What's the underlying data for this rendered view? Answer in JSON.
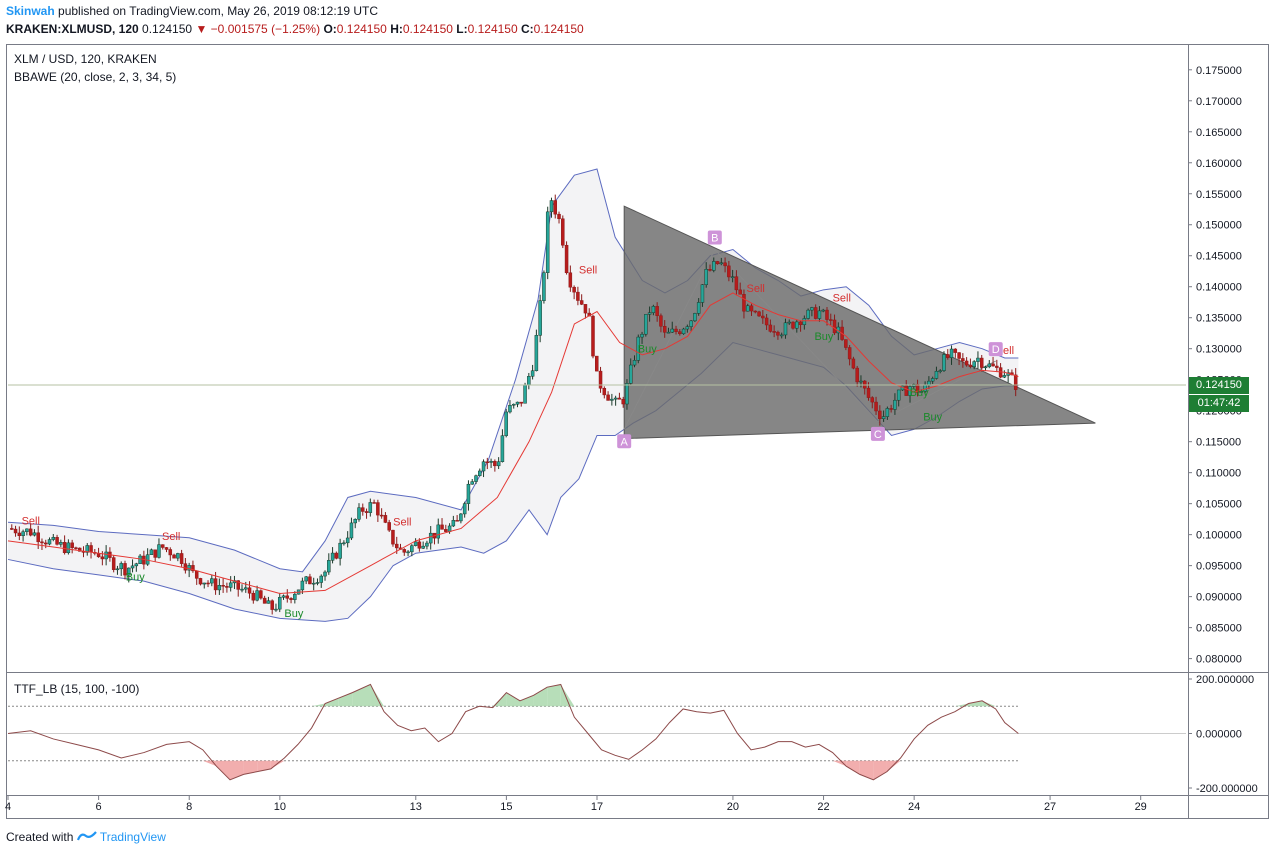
{
  "header": {
    "user": "Skinwah",
    "published_text": "published on TradingView.com, May 26, 2019 08:12:19 UTC",
    "symbol": "KRAKEN:XLMUSD, 120",
    "last": "0.124150",
    "arrow": "▼",
    "change": "−0.001575 (−1.25%)",
    "o_label": "O:",
    "o": "0.124150",
    "h_label": "H:",
    "h": "0.124150",
    "l_label": "L:",
    "l": "0.124150",
    "c_label": "C:",
    "c": "0.124150"
  },
  "legend": {
    "pair": "XLM / USD, 120, KRAKEN",
    "indicator": "BBAWE (20, close, 2, 3, 34, 5)",
    "oscillator": "TTF_LB (15, 100, -100)"
  },
  "price_tag": "0.124150",
  "time_tag": "01:47:42",
  "footer": {
    "created": "Created with",
    "brand": "TradingView"
  },
  "colors": {
    "up": "#26a69a",
    "down": "#b71c1c",
    "basis": "#e53935",
    "band": "#5c6bc0",
    "triangle": "#6b6b6b",
    "pattern_point": "#ce93d8",
    "buy": "#1b8a2a",
    "sell": "#d32f2f",
    "tag": "#1e7e34"
  },
  "chart_data": [
    {
      "type": "candlestick",
      "title": "XLM / USD, 120, KRAKEN",
      "y_ticks": [
        "0.175000",
        "0.170000",
        "0.165000",
        "0.160000",
        "0.155000",
        "0.150000",
        "0.145000",
        "0.140000",
        "0.135000",
        "0.130000",
        "0.125000",
        "0.120000",
        "0.115000",
        "0.110000",
        "0.105000",
        "0.100000",
        "0.095000",
        "0.090000",
        "0.085000",
        "0.080000"
      ],
      "ylim": [
        0.078,
        0.179
      ],
      "x_ticks": [
        {
          "label": "4",
          "day": 4
        },
        {
          "label": "6",
          "day": 6
        },
        {
          "label": "8",
          "day": 8
        },
        {
          "label": "10",
          "day": 10
        },
        {
          "label": "13",
          "day": 13
        },
        {
          "label": "15",
          "day": 15
        },
        {
          "label": "17",
          "day": 17
        },
        {
          "label": "20",
          "day": 20
        },
        {
          "label": "22",
          "day": 22
        },
        {
          "label": "24",
          "day": 24
        },
        {
          "label": "27",
          "day": 27
        },
        {
          "label": "29",
          "day": 29
        }
      ],
      "xlim": [
        4.0,
        30.0
      ],
      "price_path": [
        [
          4.0,
          0.101
        ],
        [
          4.5,
          0.1005
        ],
        [
          5.0,
          0.0985
        ],
        [
          5.5,
          0.0975
        ],
        [
          6.0,
          0.097
        ],
        [
          6.3,
          0.0955
        ],
        [
          6.6,
          0.0945
        ],
        [
          7.0,
          0.096
        ],
        [
          7.4,
          0.098
        ],
        [
          7.8,
          0.0965
        ],
        [
          8.1,
          0.0935
        ],
        [
          8.5,
          0.092
        ],
        [
          9.0,
          0.0915
        ],
        [
          9.4,
          0.0905
        ],
        [
          9.8,
          0.088
        ],
        [
          10.1,
          0.0895
        ],
        [
          10.5,
          0.092
        ],
        [
          11.0,
          0.094
        ],
        [
          11.4,
          0.099
        ],
        [
          11.8,
          0.104
        ],
        [
          12.1,
          0.105
        ],
        [
          12.4,
          0.1
        ],
        [
          12.7,
          0.097
        ],
        [
          13.1,
          0.099
        ],
        [
          13.5,
          0.1005
        ],
        [
          13.9,
          0.1015
        ],
        [
          14.2,
          0.109
        ],
        [
          14.5,
          0.112
        ],
        [
          14.8,
          0.111
        ],
        [
          15.0,
          0.12
        ],
        [
          15.3,
          0.121
        ],
        [
          15.6,
          0.128
        ],
        [
          15.8,
          0.14
        ],
        [
          15.95,
          0.155
        ],
        [
          16.2,
          0.15
        ],
        [
          16.35,
          0.142
        ],
        [
          16.6,
          0.138
        ],
        [
          16.8,
          0.136
        ],
        [
          17.0,
          0.125
        ],
        [
          17.2,
          0.123
        ],
        [
          17.4,
          0.121
        ],
        [
          17.6,
          0.122
        ],
        [
          17.9,
          0.131
        ],
        [
          18.2,
          0.137
        ],
        [
          18.5,
          0.132
        ],
        [
          18.8,
          0.133
        ],
        [
          19.1,
          0.135
        ],
        [
          19.4,
          0.142
        ],
        [
          19.7,
          0.144
        ],
        [
          20.0,
          0.141
        ],
        [
          20.3,
          0.136
        ],
        [
          20.7,
          0.134
        ],
        [
          21.1,
          0.133
        ],
        [
          21.5,
          0.135
        ],
        [
          21.9,
          0.136
        ],
        [
          22.3,
          0.133
        ],
        [
          22.7,
          0.126
        ],
        [
          23.0,
          0.122
        ],
        [
          23.3,
          0.119
        ],
        [
          23.6,
          0.122
        ],
        [
          23.9,
          0.124
        ],
        [
          24.2,
          0.123
        ],
        [
          24.5,
          0.127
        ],
        [
          24.8,
          0.129
        ],
        [
          25.1,
          0.1275
        ],
        [
          25.4,
          0.1285
        ],
        [
          25.7,
          0.127
        ],
        [
          26.0,
          0.1262
        ],
        [
          26.25,
          0.1242
        ]
      ],
      "bollinger": {
        "basis": [
          [
            4.0,
            0.099
          ],
          [
            5.0,
            0.098
          ],
          [
            6.0,
            0.097
          ],
          [
            7.0,
            0.096
          ],
          [
            8.0,
            0.0945
          ],
          [
            9.0,
            0.0925
          ],
          [
            10.0,
            0.0905
          ],
          [
            11.0,
            0.091
          ],
          [
            12.0,
            0.095
          ],
          [
            13.0,
            0.099
          ],
          [
            14.0,
            0.101
          ],
          [
            14.8,
            0.106
          ],
          [
            15.5,
            0.115
          ],
          [
            16.0,
            0.123
          ],
          [
            16.5,
            0.134
          ],
          [
            17.0,
            0.136
          ],
          [
            17.5,
            0.131
          ],
          [
            18.0,
            0.129
          ],
          [
            18.5,
            0.13
          ],
          [
            19.0,
            0.132
          ],
          [
            19.5,
            0.137
          ],
          [
            20.0,
            0.139
          ],
          [
            20.5,
            0.137
          ],
          [
            21.0,
            0.1355
          ],
          [
            21.5,
            0.1345
          ],
          [
            22.0,
            0.1345
          ],
          [
            22.5,
            0.132
          ],
          [
            23.0,
            0.128
          ],
          [
            23.5,
            0.1245
          ],
          [
            24.0,
            0.123
          ],
          [
            24.5,
            0.124
          ],
          [
            25.0,
            0.1255
          ],
          [
            25.5,
            0.1265
          ],
          [
            26.0,
            0.1262
          ],
          [
            26.3,
            0.1255
          ]
        ],
        "upper": [
          [
            4.0,
            0.102
          ],
          [
            5.0,
            0.1015
          ],
          [
            6.0,
            0.1005
          ],
          [
            7.0,
            0.1
          ],
          [
            8.0,
            0.0995
          ],
          [
            9.0,
            0.0975
          ],
          [
            10.0,
            0.0945
          ],
          [
            10.5,
            0.094
          ],
          [
            11.0,
            0.099
          ],
          [
            11.5,
            0.106
          ],
          [
            12.0,
            0.107
          ],
          [
            13.0,
            0.106
          ],
          [
            14.0,
            0.104
          ],
          [
            14.6,
            0.112
          ],
          [
            15.2,
            0.125
          ],
          [
            15.7,
            0.138
          ],
          [
            16.0,
            0.153
          ],
          [
            16.5,
            0.158
          ],
          [
            17.0,
            0.159
          ],
          [
            17.4,
            0.148
          ],
          [
            18.0,
            0.141
          ],
          [
            18.5,
            0.139
          ],
          [
            19.0,
            0.141
          ],
          [
            19.5,
            0.145
          ],
          [
            20.0,
            0.146
          ],
          [
            20.5,
            0.143
          ],
          [
            21.0,
            0.141
          ],
          [
            21.5,
            0.1385
          ],
          [
            22.0,
            0.1395
          ],
          [
            22.5,
            0.14
          ],
          [
            23.0,
            0.137
          ],
          [
            23.5,
            0.132
          ],
          [
            24.0,
            0.129
          ],
          [
            24.5,
            0.13
          ],
          [
            25.0,
            0.131
          ],
          [
            25.5,
            0.13
          ],
          [
            26.0,
            0.1285
          ],
          [
            26.3,
            0.1285
          ]
        ],
        "lower": [
          [
            4.0,
            0.096
          ],
          [
            5.0,
            0.0945
          ],
          [
            6.0,
            0.0935
          ],
          [
            7.0,
            0.0925
          ],
          [
            8.0,
            0.0905
          ],
          [
            9.0,
            0.088
          ],
          [
            10.0,
            0.0865
          ],
          [
            11.0,
            0.086
          ],
          [
            11.5,
            0.0865
          ],
          [
            12.0,
            0.09
          ],
          [
            12.5,
            0.095
          ],
          [
            13.0,
            0.097
          ],
          [
            14.0,
            0.098
          ],
          [
            14.5,
            0.097
          ],
          [
            15.0,
            0.099
          ],
          [
            15.5,
            0.104
          ],
          [
            15.9,
            0.1
          ],
          [
            16.2,
            0.106
          ],
          [
            16.6,
            0.109
          ],
          [
            17.0,
            0.116
          ],
          [
            17.4,
            0.116
          ],
          [
            17.8,
            0.118
          ],
          [
            18.3,
            0.12
          ],
          [
            18.8,
            0.123
          ],
          [
            19.3,
            0.126
          ],
          [
            20.0,
            0.131
          ],
          [
            20.5,
            0.13
          ],
          [
            21.0,
            0.129
          ],
          [
            21.5,
            0.128
          ],
          [
            22.0,
            0.127
          ],
          [
            22.5,
            0.124
          ],
          [
            23.0,
            0.12
          ],
          [
            23.5,
            0.116
          ],
          [
            24.0,
            0.117
          ],
          [
            24.5,
            0.119
          ],
          [
            25.0,
            0.1215
          ],
          [
            25.5,
            0.1235
          ],
          [
            26.0,
            0.124
          ],
          [
            26.3,
            0.124
          ]
        ]
      },
      "pattern": {
        "triangle": [
          [
            17.6,
            0.153
          ],
          [
            28.0,
            0.118
          ],
          [
            17.6,
            0.1155
          ]
        ],
        "points": [
          {
            "label": "A",
            "day": 17.6,
            "price": 0.117
          },
          {
            "label": "B",
            "day": 19.6,
            "price": 0.146
          },
          {
            "label": "C",
            "day": 23.2,
            "price": 0.1182
          },
          {
            "label": "D",
            "day": 25.8,
            "price": 0.128
          }
        ]
      },
      "signals": [
        {
          "text": "Sell",
          "day": 4.3,
          "price": 0.101
        },
        {
          "text": "Buy",
          "day": 6.6,
          "price": 0.0942
        },
        {
          "text": "Sell",
          "day": 7.4,
          "price": 0.0985
        },
        {
          "text": "Buy",
          "day": 10.1,
          "price": 0.0883
        },
        {
          "text": "Sell",
          "day": 12.5,
          "price": 0.1008
        },
        {
          "text": "Sell",
          "day": 16.6,
          "price": 0.1415
        },
        {
          "text": "Buy",
          "day": 17.9,
          "price": 0.131
        },
        {
          "text": "Sell",
          "day": 20.3,
          "price": 0.1385
        },
        {
          "text": "Buy",
          "day": 21.8,
          "price": 0.133
        },
        {
          "text": "Sell",
          "day": 22.2,
          "price": 0.137
        },
        {
          "text": "Buy",
          "day": 23.9,
          "price": 0.124
        },
        {
          "text": "Buy",
          "day": 24.2,
          "price": 0.12
        },
        {
          "text": "Sell",
          "day": 25.8,
          "price": 0.1285
        }
      ],
      "last_price": 0.12415
    },
    {
      "type": "line",
      "title": "TTF_LB (15, 100, -100)",
      "y_ticks": [
        "200.000000",
        "0.000000",
        "-200.000000"
      ],
      "ylim": [
        -200,
        200
      ],
      "levels": [
        100,
        -100
      ],
      "x": [
        4.0,
        4.5,
        5.0,
        5.5,
        6.0,
        6.5,
        7.0,
        7.5,
        8.0,
        8.3,
        8.6,
        8.9,
        9.2,
        9.5,
        9.8,
        10.1,
        10.4,
        10.7,
        11.0,
        11.3,
        11.6,
        12.0,
        12.3,
        12.6,
        12.9,
        13.2,
        13.5,
        13.8,
        14.1,
        14.4,
        14.7,
        15.0,
        15.3,
        15.6,
        15.9,
        16.2,
        16.5,
        16.8,
        17.1,
        17.4,
        17.7,
        18.0,
        18.3,
        18.6,
        18.9,
        19.2,
        19.5,
        19.8,
        20.1,
        20.4,
        20.7,
        21.0,
        21.3,
        21.6,
        21.9,
        22.2,
        22.5,
        22.8,
        23.1,
        23.4,
        23.7,
        24.0,
        24.3,
        24.6,
        24.9,
        25.2,
        25.5,
        25.8,
        26.0,
        26.3
      ],
      "y": [
        0,
        10,
        -20,
        -40,
        -60,
        -90,
        -70,
        -40,
        -30,
        -60,
        -120,
        -170,
        -150,
        -140,
        -130,
        -90,
        -40,
        20,
        110,
        130,
        150,
        180,
        80,
        30,
        10,
        20,
        -30,
        0,
        80,
        100,
        95,
        150,
        120,
        140,
        170,
        180,
        60,
        0,
        -60,
        -80,
        -95,
        -60,
        -20,
        40,
        90,
        80,
        75,
        85,
        0,
        -60,
        -50,
        -30,
        -30,
        -50,
        -40,
        -70,
        -120,
        -150,
        -170,
        -140,
        -90,
        -20,
        30,
        60,
        80,
        110,
        120,
        90,
        40,
        0
      ]
    }
  ]
}
